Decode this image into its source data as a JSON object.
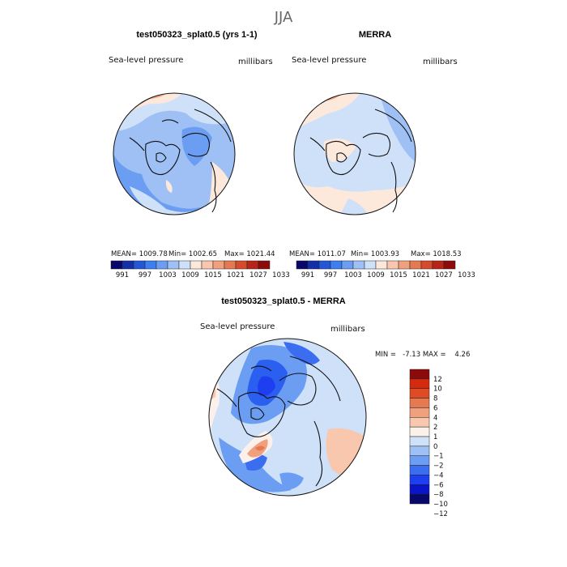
{
  "figure": {
    "title": "JJA",
    "panel_top_left_title": "test050323_splat0.5 (yrs 1-1)",
    "panel_top_right_title": "MERRA",
    "panel_bottom_title": "test050323_splat0.5 - MERRA"
  },
  "colors": {
    "abs_scale": [
      "#08086b",
      "#1430a8",
      "#2457d8",
      "#3d7ef0",
      "#6b9ef2",
      "#9ec0f5",
      "#cfe1f8",
      "#fde8dc",
      "#f8c7ad",
      "#f1a07e",
      "#e57a52",
      "#d44c2c",
      "#b72418",
      "#8c0a0a"
    ],
    "diff_scale": [
      "#08086b",
      "#0a14c8",
      "#1e3ff0",
      "#3a6df0",
      "#6b9ef2",
      "#9ec0f5",
      "#cfe1f8",
      "#fbf1ea",
      "#f8c7ad",
      "#f1a07e",
      "#e57a52",
      "#e04a24",
      "#d42a0e",
      "#8c0a0a"
    ]
  },
  "chart_data": [
    {
      "type": "heatmap",
      "projection": "north polar stereographic",
      "title": "test050323_splat0.5 (yrs 1-1)",
      "field_label": "Sea-level pressure",
      "units": "millibars",
      "stats": {
        "mean_text": "MEAN= 1009.78",
        "min_text": "Min= 1002.65",
        "max_text": "Max= 1021.44",
        "mean": 1009.78,
        "min": 1002.65,
        "max": 1021.44
      },
      "colorbar": {
        "orientation": "horizontal",
        "tick_labels": [
          "991",
          "997",
          "1003",
          "1009",
          "1015",
          "1021",
          "1027",
          "1033"
        ],
        "levels": [
          991,
          994,
          997,
          1000,
          1003,
          1006,
          1009,
          1012,
          1015,
          1018,
          1021,
          1024,
          1027,
          1030,
          1033
        ]
      }
    },
    {
      "type": "heatmap",
      "projection": "north polar stereographic",
      "title": "MERRA",
      "field_label": "Sea-level pressure",
      "units": "millibars",
      "stats": {
        "mean_text": "MEAN= 1011.07",
        "min_text": "Min= 1003.93",
        "max_text": "Max= 1018.53",
        "mean": 1011.07,
        "min": 1003.93,
        "max": 1018.53
      },
      "colorbar": {
        "orientation": "horizontal",
        "tick_labels": [
          "991",
          "997",
          "1003",
          "1009",
          "1015",
          "1021",
          "1027",
          "1033"
        ],
        "levels": [
          991,
          994,
          997,
          1000,
          1003,
          1006,
          1009,
          1012,
          1015,
          1018,
          1021,
          1024,
          1027,
          1030,
          1033
        ]
      }
    },
    {
      "type": "heatmap",
      "projection": "north polar stereographic",
      "title": "test050323_splat0.5 - MERRA",
      "field_label": "Sea-level pressure",
      "units": "millibars",
      "stats": {
        "minmax_text": "MIN =   -7.13 MAX =    4.26",
        "min": -7.13,
        "max": 4.26
      },
      "colorbar": {
        "orientation": "vertical",
        "tick_labels": [
          "12",
          "10",
          "8",
          "6",
          "4",
          "2",
          "1",
          "0",
          "−1",
          "−2",
          "−4",
          "−6",
          "−8",
          "−10",
          "−12"
        ],
        "levels": [
          12,
          10,
          8,
          6,
          4,
          2,
          1,
          0,
          -1,
          -2,
          -4,
          -6,
          -8,
          -10,
          -12
        ]
      }
    }
  ]
}
